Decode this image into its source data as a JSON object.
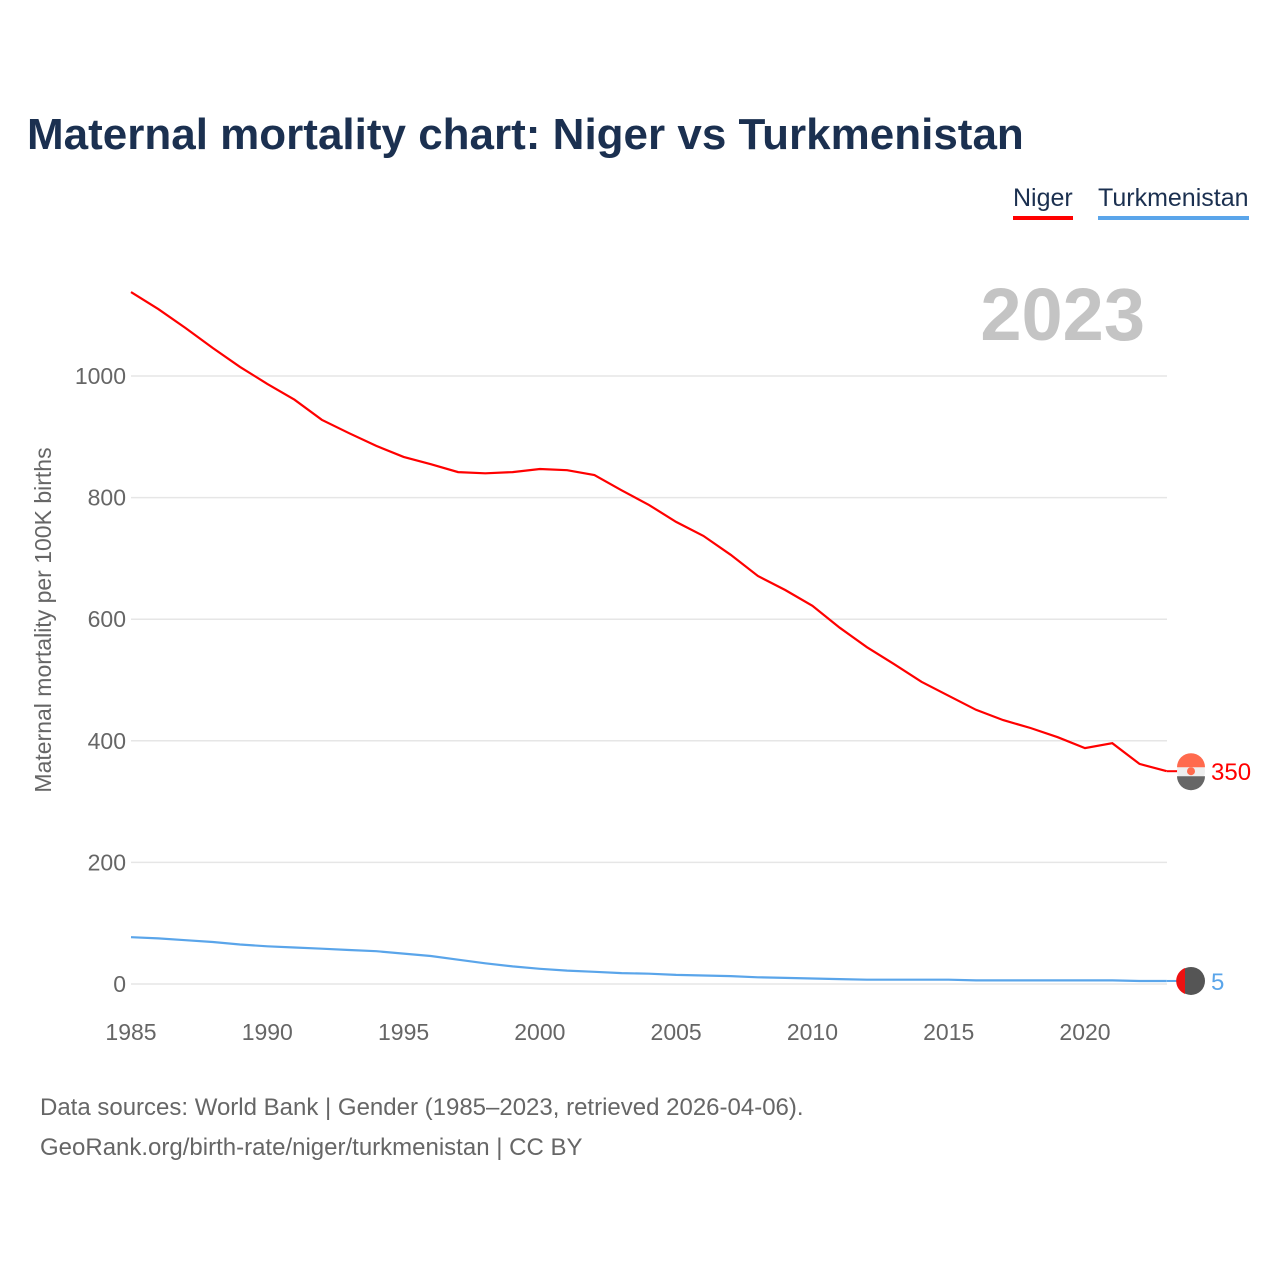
{
  "title": "Maternal mortality chart: Niger vs Turkmenistan",
  "year_label": "2023",
  "source_lines": [
    "Data sources: World Bank | Gender (1985–2023, retrieved 2026-04-06).",
    "GeoRank.org/birth-rate/niger/turkmenistan | CC BY"
  ],
  "chart_data": {
    "type": "line",
    "title": "Maternal mortality chart: Niger vs Turkmenistan",
    "xlabel": "",
    "ylabel": "Maternal mortality per 100K births",
    "xlim": [
      1985,
      2023
    ],
    "ylim": [
      0,
      1150
    ],
    "x_ticks": [
      1985,
      1990,
      1995,
      2000,
      2005,
      2010,
      2015,
      2020
    ],
    "y_ticks": [
      0,
      200,
      400,
      600,
      800,
      1000
    ],
    "grid": true,
    "legend_position": "top-right",
    "x": [
      1985,
      1986,
      1987,
      1988,
      1989,
      1990,
      1991,
      1992,
      1993,
      1994,
      1995,
      1996,
      1997,
      1998,
      1999,
      2000,
      2001,
      2002,
      2003,
      2004,
      2005,
      2006,
      2007,
      2008,
      2009,
      2010,
      2011,
      2012,
      2013,
      2014,
      2015,
      2016,
      2017,
      2018,
      2019,
      2020,
      2021,
      2022,
      2023
    ],
    "series": [
      {
        "name": "Niger",
        "color": "#ff0000",
        "end_label": "350",
        "values": [
          1138,
          1110,
          1079,
          1046,
          1015,
          987,
          961,
          928,
          906,
          885,
          867,
          855,
          842,
          840,
          842,
          847,
          845,
          837,
          812,
          788,
          760,
          737,
          706,
          671,
          648,
          622,
          586,
          554,
          526,
          497,
          474,
          451,
          434,
          421,
          406,
          388,
          396,
          362,
          350
        ]
      },
      {
        "name": "Turkmenistan",
        "color": "#5aa5ea",
        "end_label": "5",
        "values": [
          77,
          75,
          72,
          69,
          65,
          62,
          60,
          58,
          56,
          54,
          50,
          46,
          40,
          34,
          29,
          25,
          22,
          20,
          18,
          17,
          15,
          14,
          13,
          11,
          10,
          9,
          8,
          7,
          7,
          7,
          7,
          6,
          6,
          6,
          6,
          6,
          6,
          5,
          5
        ]
      }
    ]
  }
}
